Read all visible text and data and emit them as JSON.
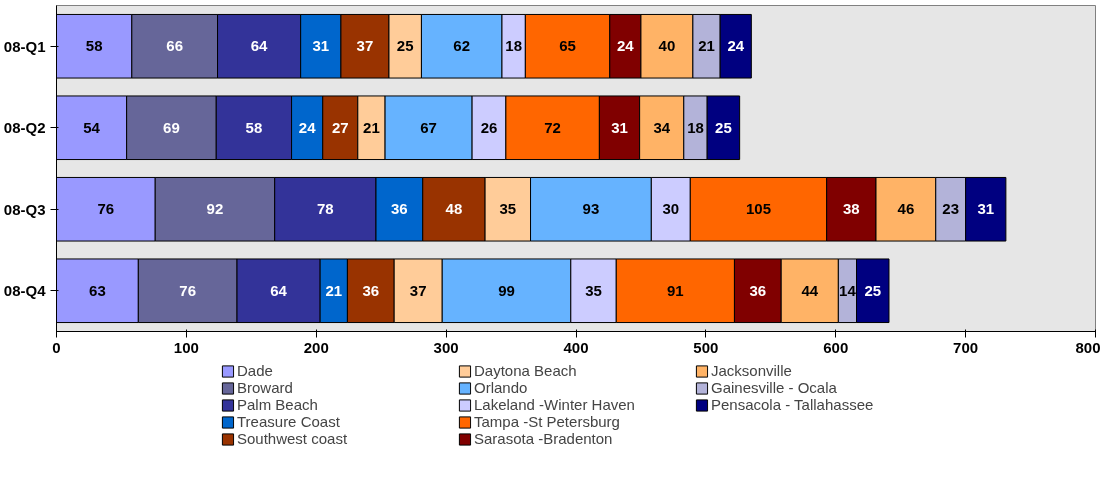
{
  "chart_data": {
    "type": "bar",
    "orientation": "horizontal",
    "stacked": true,
    "data_labels": true,
    "grid": false,
    "legend": "bottom",
    "categories": [
      "08-Q1",
      "08-Q2",
      "08-Q3",
      "08-Q4"
    ],
    "xlim": [
      0,
      800
    ],
    "xticks": [
      0,
      100,
      200,
      300,
      400,
      500,
      600,
      700,
      800
    ],
    "series": [
      {
        "name": "Dade",
        "color": "#9999ff",
        "values": [
          58,
          54,
          76,
          63
        ]
      },
      {
        "name": "Broward",
        "color": "#666699",
        "values": [
          66,
          69,
          92,
          76
        ]
      },
      {
        "name": "Palm Beach",
        "color": "#333399",
        "values": [
          64,
          58,
          78,
          64
        ]
      },
      {
        "name": "Treasure Coast",
        "color": "#0066cc",
        "values": [
          31,
          24,
          36,
          21
        ]
      },
      {
        "name": "Southwest coast",
        "color": "#993300",
        "values": [
          37,
          27,
          48,
          36
        ]
      },
      {
        "name": "Daytona Beach",
        "color": "#ffcc99",
        "values": [
          25,
          21,
          35,
          37
        ]
      },
      {
        "name": "Orlando",
        "color": "#66b3ff",
        "values": [
          62,
          67,
          93,
          99
        ]
      },
      {
        "name": "Lakeland -Winter Haven",
        "color": "#ccccff",
        "values": [
          18,
          26,
          30,
          35
        ]
      },
      {
        "name": "Tampa -St Petersburg",
        "color": "#ff6600",
        "values": [
          65,
          72,
          105,
          91
        ]
      },
      {
        "name": "Sarasota -Bradenton",
        "color": "#800000",
        "values": [
          24,
          31,
          38,
          36
        ]
      },
      {
        "name": "Jacksonville",
        "color": "#ffb366",
        "values": [
          40,
          34,
          46,
          44
        ]
      },
      {
        "name": "Gainesville - Ocala",
        "color": "#b3b3d9",
        "values": [
          21,
          18,
          23,
          14
        ]
      },
      {
        "name": "Pensacola - Tallahassee",
        "color": "#000080",
        "values": [
          24,
          25,
          31,
          25
        ]
      }
    ]
  }
}
